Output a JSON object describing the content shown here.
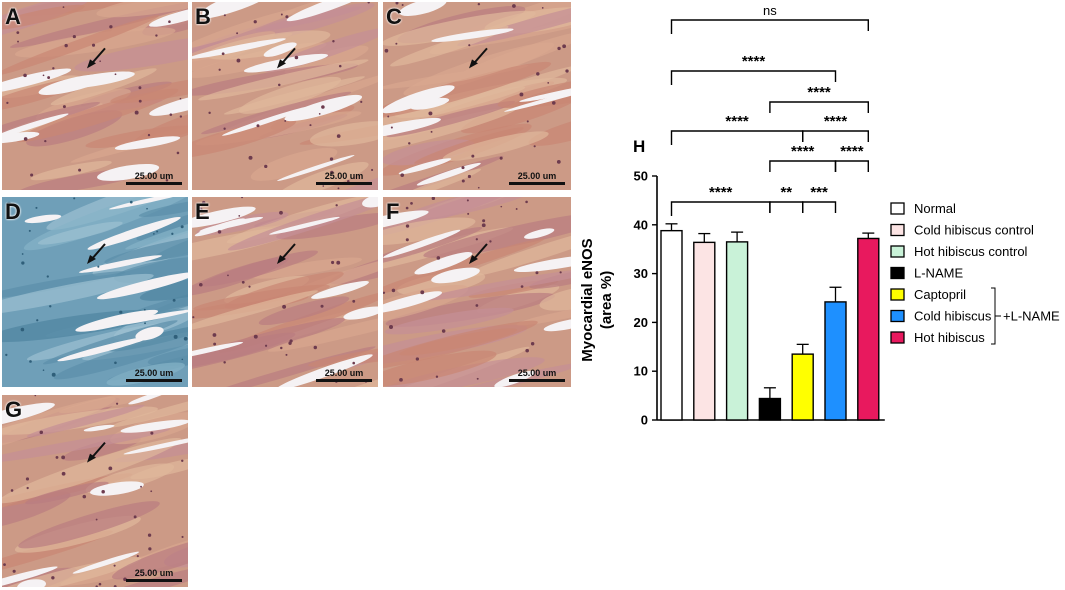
{
  "panels": [
    {
      "letter": "A",
      "scale": "25.00 um",
      "stain": "brown"
    },
    {
      "letter": "B",
      "scale": "25.00 um",
      "stain": "brown"
    },
    {
      "letter": "C",
      "scale": "25.00 um",
      "stain": "brown"
    },
    {
      "letter": "D",
      "scale": "25.00 um",
      "stain": "blue"
    },
    {
      "letter": "E",
      "scale": "25.00 um",
      "stain": "brown"
    },
    {
      "letter": "F",
      "scale": "25.00 um",
      "stain": "brown"
    },
    {
      "letter": "G",
      "scale": "25.00 um",
      "stain": "brown"
    }
  ],
  "chart_data": {
    "type": "bar",
    "panel_label": "H",
    "ylabel_line1": "Myocardial eNOS",
    "ylabel_line2": "(area %)",
    "ylim": [
      0,
      50
    ],
    "yticks": [
      "0",
      "10",
      "20",
      "30",
      "40",
      "50"
    ],
    "categories": [
      "Normal",
      "Cold hibiscus control",
      "Hot hibiscus control",
      "L-NAME",
      "Captopril",
      "Cold hibiscus",
      "Hot hibiscus"
    ],
    "values": [
      38.8,
      36.4,
      36.5,
      4.4,
      13.5,
      24.2,
      37.2
    ],
    "errors": [
      1.4,
      1.8,
      2.0,
      2.2,
      2.0,
      3.0,
      1.1
    ],
    "colors": [
      "#ffffff",
      "#fce4e4",
      "#c9f2d8",
      "#000000",
      "#ffff00",
      "#1e90ff",
      "#e8195e"
    ],
    "group_label": "+L-NAME",
    "annotations": [
      {
        "from": 0,
        "to": 6,
        "text": "ns"
      },
      {
        "from": 0,
        "to": 5,
        "text": "****"
      },
      {
        "from": 3,
        "to": 6,
        "text": "****"
      },
      {
        "from": 0,
        "to": 4,
        "text": "****"
      },
      {
        "from": 4,
        "to": 6,
        "text": "****"
      },
      {
        "from": 3,
        "to": 5,
        "text": "****"
      },
      {
        "from": 5,
        "to": 6,
        "text": "****"
      },
      {
        "from": 0,
        "to": 3,
        "text": "****"
      },
      {
        "from": 3,
        "to": 4,
        "text": "**"
      },
      {
        "from": 4,
        "to": 5,
        "text": "***"
      }
    ]
  }
}
